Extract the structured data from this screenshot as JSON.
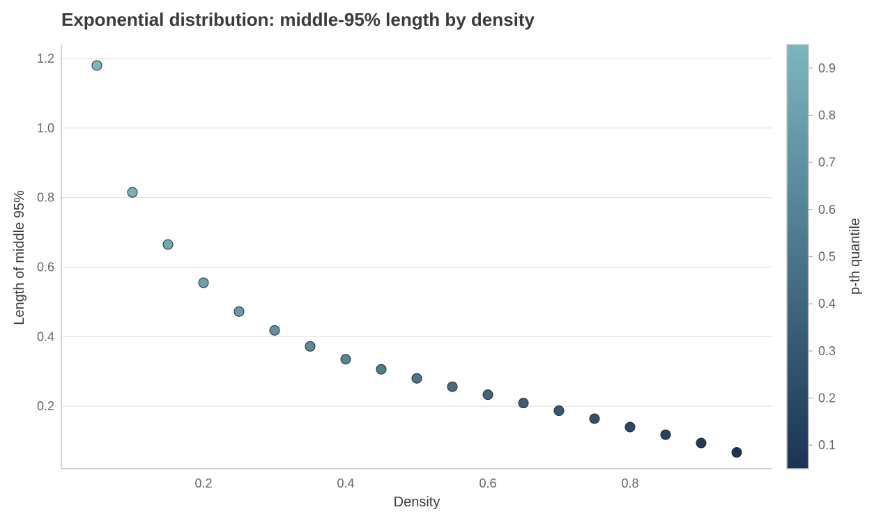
{
  "chart_data": {
    "type": "scatter",
    "title": "Exponential distribution: middle-95% length by density",
    "xlabel": "Density",
    "ylabel": "Length of middle 95%",
    "colorbar_label": "p-th quantile",
    "xlim": [
      0.0,
      1.0
    ],
    "ylim": [
      0.02,
      1.24
    ],
    "xticks": [
      0.2,
      0.4,
      0.6,
      0.8
    ],
    "yticks": [
      0.2,
      0.4,
      0.6,
      0.8,
      1.0,
      1.2
    ],
    "colorbar_range": [
      0.05,
      0.95
    ],
    "colorbar_ticks": [
      0.1,
      0.2,
      0.3,
      0.4,
      0.5,
      0.6,
      0.7,
      0.8,
      0.9
    ],
    "colormap": {
      "low": "#1b3354",
      "high": "#7bb6c0"
    },
    "grid": "horizontal",
    "points": [
      {
        "x": 0.05,
        "y": 1.18,
        "c": 0.95
      },
      {
        "x": 0.1,
        "y": 0.815,
        "c": 0.9
      },
      {
        "x": 0.15,
        "y": 0.665,
        "c": 0.85
      },
      {
        "x": 0.2,
        "y": 0.555,
        "c": 0.8
      },
      {
        "x": 0.25,
        "y": 0.472,
        "c": 0.75
      },
      {
        "x": 0.3,
        "y": 0.418,
        "c": 0.7
      },
      {
        "x": 0.35,
        "y": 0.372,
        "c": 0.65
      },
      {
        "x": 0.4,
        "y": 0.335,
        "c": 0.6
      },
      {
        "x": 0.45,
        "y": 0.306,
        "c": 0.55
      },
      {
        "x": 0.5,
        "y": 0.28,
        "c": 0.5
      },
      {
        "x": 0.55,
        "y": 0.256,
        "c": 0.45
      },
      {
        "x": 0.6,
        "y": 0.233,
        "c": 0.4
      },
      {
        "x": 0.65,
        "y": 0.209,
        "c": 0.35
      },
      {
        "x": 0.7,
        "y": 0.187,
        "c": 0.3
      },
      {
        "x": 0.75,
        "y": 0.164,
        "c": 0.25
      },
      {
        "x": 0.8,
        "y": 0.14,
        "c": 0.2
      },
      {
        "x": 0.85,
        "y": 0.118,
        "c": 0.15
      },
      {
        "x": 0.9,
        "y": 0.094,
        "c": 0.1
      },
      {
        "x": 0.95,
        "y": 0.067,
        "c": 0.05
      }
    ]
  }
}
